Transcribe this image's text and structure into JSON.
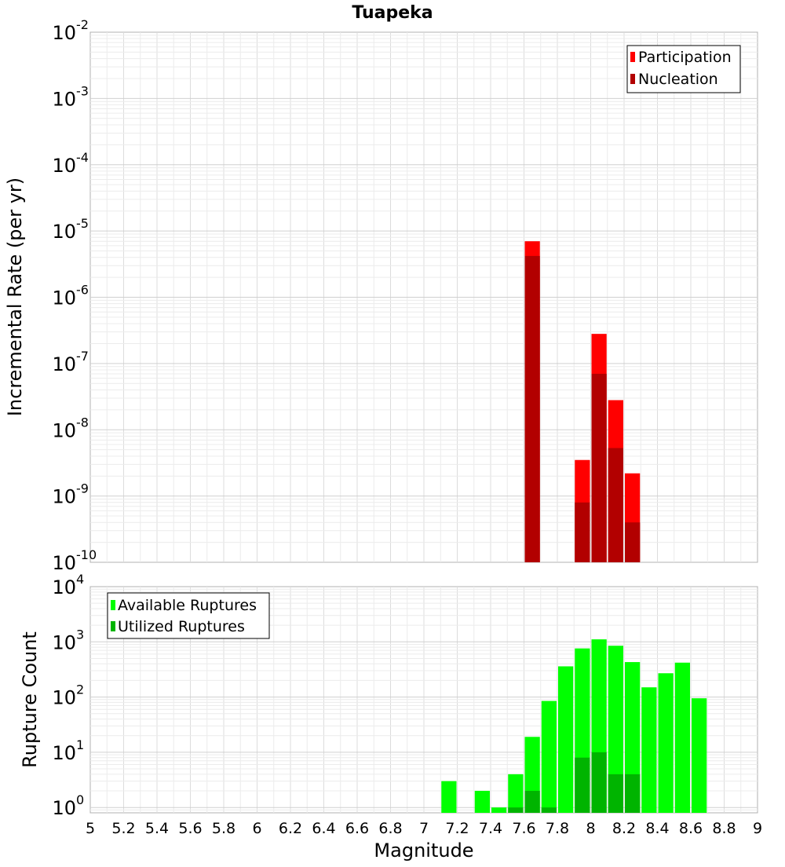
{
  "chart_data": [
    {
      "type": "bar",
      "title": "Tuapeka",
      "xlabel": "",
      "ylabel": "Incremental Rate (per yr)",
      "yscale": "log",
      "ylim": [
        1e-10,
        0.01
      ],
      "xlim": [
        5,
        9
      ],
      "bin_width": 0.1,
      "grid": true,
      "legend_position": "top-right",
      "y_ticks": [
        {
          "base": "10",
          "exp": "-10"
        },
        {
          "base": "10",
          "exp": "-9"
        },
        {
          "base": "10",
          "exp": "-8"
        },
        {
          "base": "10",
          "exp": "-7"
        },
        {
          "base": "10",
          "exp": "-6"
        },
        {
          "base": "10",
          "exp": "-5"
        },
        {
          "base": "10",
          "exp": "-4"
        },
        {
          "base": "10",
          "exp": "-3"
        },
        {
          "base": "10",
          "exp": "-2"
        }
      ],
      "series": [
        {
          "name": "Participation",
          "color": "#ff0000",
          "points": [
            [
              7.65,
              7e-06
            ],
            [
              7.95,
              3.5e-09
            ],
            [
              8.05,
              2.8e-07
            ],
            [
              8.15,
              2.8e-08
            ],
            [
              8.25,
              2.2e-09
            ]
          ]
        },
        {
          "name": "Nucleation",
          "color": "#b20000",
          "points": [
            [
              7.65,
              4.2e-06
            ],
            [
              7.95,
              8e-10
            ],
            [
              8.05,
              7e-08
            ],
            [
              8.15,
              5.3e-09
            ],
            [
              8.25,
              4e-10
            ]
          ]
        }
      ]
    },
    {
      "type": "bar",
      "title": "",
      "xlabel": "Magnitude",
      "ylabel": "Rupture Count",
      "yscale": "log",
      "ylim": [
        0.8,
        10000
      ],
      "xlim": [
        5,
        9
      ],
      "bin_width": 0.1,
      "grid": true,
      "legend_position": "top-left",
      "x_ticks": [
        "5",
        "5.2",
        "5.4",
        "5.6",
        "5.8",
        "6",
        "6.2",
        "6.4",
        "6.6",
        "6.8",
        "7",
        "7.2",
        "7.4",
        "7.6",
        "7.8",
        "8",
        "8.2",
        "8.4",
        "8.6",
        "8.8",
        "9"
      ],
      "y_ticks": [
        {
          "base": "10",
          "exp": "0"
        },
        {
          "base": "10",
          "exp": "1"
        },
        {
          "base": "10",
          "exp": "2"
        },
        {
          "base": "10",
          "exp": "3"
        },
        {
          "base": "10",
          "exp": "4"
        }
      ],
      "series": [
        {
          "name": "Available Ruptures",
          "color": "#00ff00",
          "points": [
            [
              7.15,
              3
            ],
            [
              7.35,
              2
            ],
            [
              7.45,
              1
            ],
            [
              7.55,
              4
            ],
            [
              7.65,
              19
            ],
            [
              7.75,
              85
            ],
            [
              7.85,
              360
            ],
            [
              7.95,
              760
            ],
            [
              8.05,
              1110
            ],
            [
              8.15,
              850
            ],
            [
              8.25,
              430
            ],
            [
              8.35,
              150
            ],
            [
              8.45,
              270
            ],
            [
              8.55,
              420
            ],
            [
              8.65,
              95
            ]
          ]
        },
        {
          "name": "Utilized Ruptures",
          "color": "#00b400",
          "points": [
            [
              7.55,
              1
            ],
            [
              7.65,
              2
            ],
            [
              7.75,
              1
            ],
            [
              7.95,
              8
            ],
            [
              8.05,
              10
            ],
            [
              8.15,
              4
            ],
            [
              8.25,
              4
            ]
          ]
        }
      ]
    }
  ]
}
